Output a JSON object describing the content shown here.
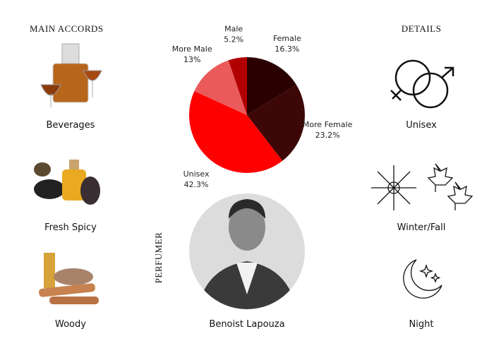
{
  "main_accords": {
    "heading": "MAIN ACCORDS",
    "items": [
      "Beverages",
      "Fresh Spicy",
      "Woody"
    ]
  },
  "chart_data": {
    "type": "pie",
    "categories": [
      "Female",
      "More Female",
      "Unisex",
      "More Male",
      "Male"
    ],
    "values": [
      16.3,
      23.2,
      42.3,
      13,
      5.2
    ],
    "value_labels": [
      "16.3%",
      "23.2%",
      "42.3%",
      "13%",
      "5.2%"
    ],
    "colors": [
      "#2b0000",
      "#3d0707",
      "#ff0000",
      "#ea5a5a",
      "#b10000"
    ]
  },
  "perfumer": {
    "heading": "PERFUMER",
    "name": "Benoist Lapouza"
  },
  "details": {
    "heading": "DETAILS",
    "items": [
      "Unisex",
      "Winter/Fall",
      "Night"
    ]
  }
}
